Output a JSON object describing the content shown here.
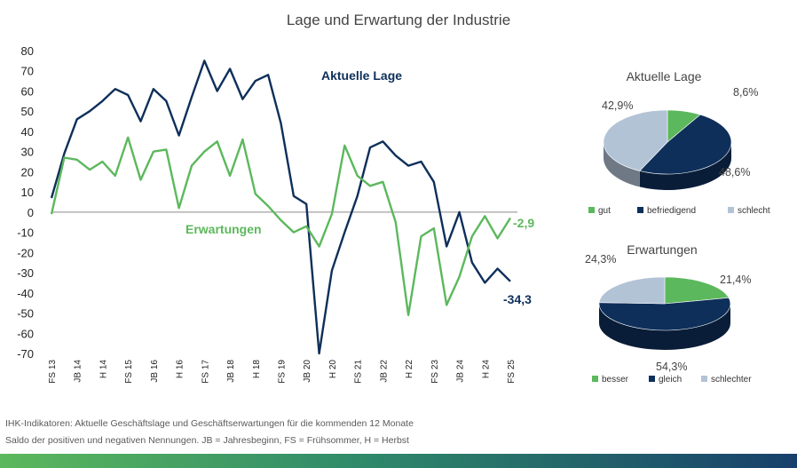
{
  "title": "Lage und Erwartung der Industrie",
  "chart_data": [
    {
      "type": "line",
      "yticks": [
        80,
        70,
        60,
        50,
        40,
        30,
        20,
        10,
        0,
        -10,
        -20,
        -30,
        -40,
        -50,
        -60,
        -70
      ],
      "ylim": [
        -70,
        80
      ],
      "xticks": [
        "FS 13",
        "JB 14",
        "H 14",
        "FS 15",
        "JB 16",
        "H 16",
        "FS 17",
        "JB 18",
        "H 18",
        "FS 19",
        "JB 20",
        "H 20",
        "FS 21",
        "JB 22",
        "H 22",
        "FS 23",
        "JB 24",
        "H 24",
        "FS 25"
      ],
      "series": [
        {
          "name": "Aktuelle Lage",
          "color": "#0e2f5a",
          "values": [
            7,
            29,
            46,
            50,
            55,
            61,
            58,
            45,
            61,
            55,
            38,
            57,
            75,
            60,
            71,
            56,
            65,
            68,
            44,
            8,
            4,
            -70,
            -29,
            -10,
            8,
            32,
            35,
            28,
            23,
            25,
            15,
            -17,
            0,
            -25,
            -35,
            -28,
            -34.3
          ],
          "end_label": "-34,3"
        },
        {
          "name": "Erwartungen",
          "color": "#5cb85c",
          "values": [
            -1,
            27,
            26,
            21,
            25,
            18,
            37,
            16,
            30,
            31,
            2,
            23,
            30,
            35,
            18,
            36,
            9,
            3,
            -4,
            -10,
            -7,
            -17,
            -1,
            33,
            18,
            13,
            15,
            -5,
            -51,
            -12,
            -8,
            -46,
            -32,
            -12,
            -2,
            -13,
            -2.9
          ],
          "end_label": "-2,9"
        }
      ]
    },
    {
      "type": "pie",
      "title": "Aktuelle Lage",
      "labels": [
        "gut",
        "befriedigend",
        "schlecht"
      ],
      "values": [
        8.6,
        48.6,
        42.9
      ],
      "value_labels": [
        "8,6%",
        "48,6%",
        "42,9%"
      ],
      "colors": [
        "#5cb85c",
        "#0e2f5a",
        "#b3c3d6"
      ]
    },
    {
      "type": "pie",
      "title": "Erwartungen",
      "labels": [
        "besser",
        "gleich",
        "schlechter"
      ],
      "values": [
        21.4,
        54.3,
        24.3
      ],
      "value_labels": [
        "21,4%",
        "54,3%",
        "24,3%"
      ],
      "colors": [
        "#5cb85c",
        "#0e2f5a",
        "#b3c3d6"
      ]
    }
  ],
  "footnote": {
    "line1": "IHK-Indikatoren: Aktuelle Geschäftslage und Geschäftserwartungen für die kommenden 12 Monate",
    "line2": "Saldo der positiven und negativen Nennungen. JB = Jahresbeginn, FS = Frühsommer, H = Herbst"
  }
}
